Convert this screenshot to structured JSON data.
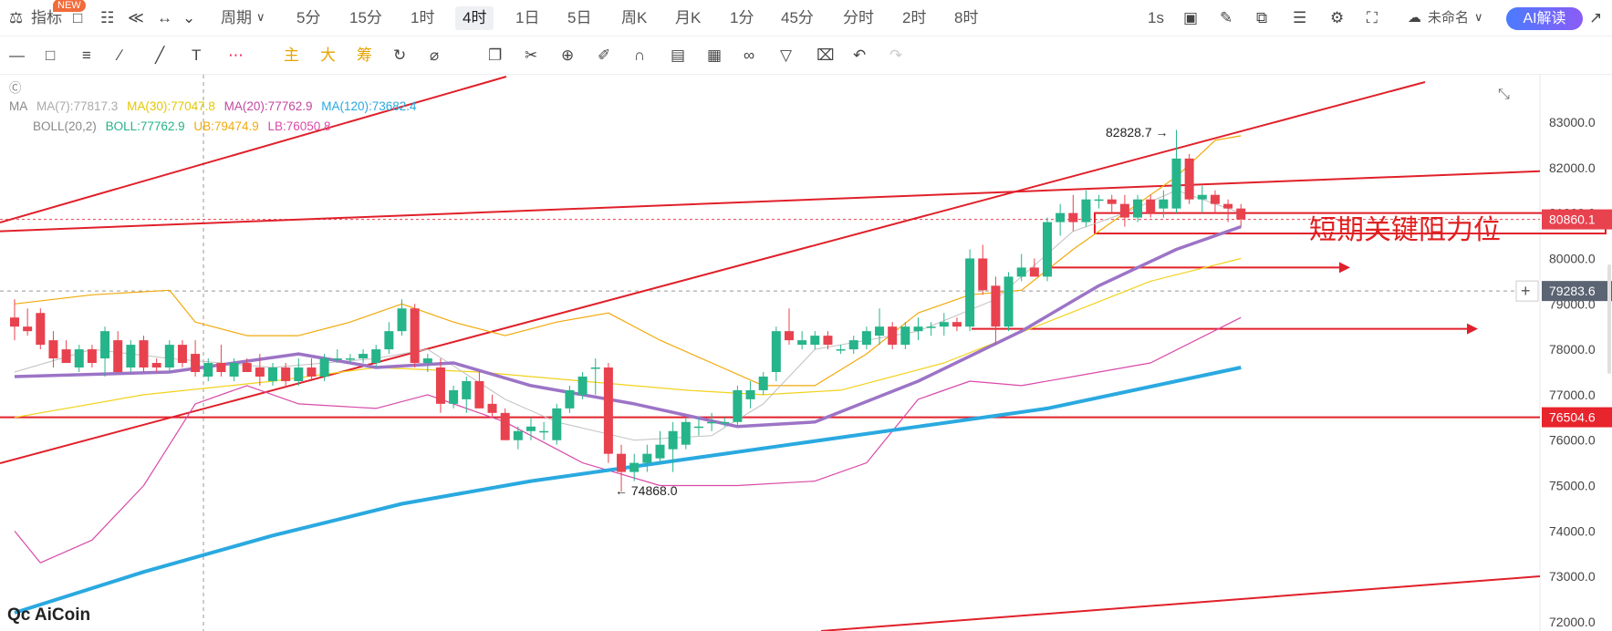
{
  "toolbar": {
    "indicators_label": "指标",
    "new_badge": "NEW",
    "period_label": "周期",
    "timeframes": [
      "5分",
      "15分",
      "1时",
      "4时",
      "1日",
      "5日",
      "周K",
      "月K",
      "1分",
      "45分",
      "分时",
      "2时",
      "8时"
    ],
    "active_timeframe": "4时",
    "refresh_label": "1s",
    "layout_name": "未命名",
    "ai_button": "AI解读"
  },
  "drawing_toolbar": {
    "text_tools": [
      "主",
      "大",
      "筹"
    ]
  },
  "legend": {
    "ma_label": "MA",
    "ma7": "MA(7):77817.3",
    "ma30": "MA(30):77047.8",
    "ma20": "MA(20):77762.9",
    "ma120": "MA(120):73682.4",
    "boll_label": "BOLL(20,2)",
    "boll": "BOLL:77762.9",
    "ub": "UB:79474.9",
    "lb": "LB:76050.8"
  },
  "colors": {
    "up": "#26b48a",
    "down": "#e8424f",
    "ma7": "#c0c0c0",
    "ma30": "#f2d21c",
    "ma20": "#9c74c6",
    "ma120": "#2aa9e0",
    "ub": "#f2a90c",
    "lb": "#d94aa8",
    "trendline": "#e0202a"
  },
  "chart_data": {
    "type": "candlestick",
    "y_axis_ticks": [
      "83000.0",
      "82000.0",
      "81000.0",
      "80000.0",
      "79000.0",
      "78000.0",
      "77000.0",
      "76000.0",
      "75000.0",
      "74000.0",
      "73000.0",
      "72000.0"
    ],
    "ylim": [
      71750,
      83750
    ],
    "price_labels": {
      "current": "80860.1",
      "crosshair": "79283.6",
      "support": "76504.6"
    },
    "annotations": {
      "high": "82828.7",
      "low": "74868.0",
      "key_resistance": "短期关键阻力位"
    },
    "candles": [
      [
        78700,
        79100,
        78200,
        78500
      ],
      [
        78500,
        78900,
        78300,
        78400
      ],
      [
        78800,
        78900,
        78000,
        78100
      ],
      [
        78200,
        78400,
        77600,
        77800
      ],
      [
        78000,
        78200,
        77700,
        77700
      ],
      [
        77600,
        78100,
        77500,
        78000
      ],
      [
        78000,
        78100,
        77600,
        77700
      ],
      [
        77800,
        78500,
        77400,
        78400
      ],
      [
        78200,
        78400,
        77500,
        77500
      ],
      [
        77600,
        78200,
        77500,
        78100
      ],
      [
        78200,
        78300,
        77500,
        77600
      ],
      [
        77700,
        77800,
        77500,
        77600
      ],
      [
        77600,
        78200,
        77500,
        78100
      ],
      [
        78100,
        78200,
        77600,
        77700
      ],
      [
        77900,
        78200,
        77400,
        77500
      ],
      [
        77400,
        77800,
        77300,
        77700
      ],
      [
        77700,
        78100,
        77400,
        77500
      ],
      [
        77400,
        77800,
        77300,
        77700
      ],
      [
        77700,
        77800,
        77500,
        77500
      ],
      [
        77600,
        77900,
        77200,
        77400
      ],
      [
        77300,
        77700,
        77200,
        77600
      ],
      [
        77600,
        77700,
        77200,
        77300
      ],
      [
        77300,
        77800,
        77200,
        77600
      ],
      [
        77600,
        77800,
        77300,
        77400
      ],
      [
        77400,
        77900,
        77300,
        77800
      ],
      [
        77800,
        78000,
        77700,
        77800
      ],
      [
        77800,
        77900,
        77700,
        77800
      ],
      [
        77800,
        78000,
        77700,
        77900
      ],
      [
        77700,
        78100,
        77600,
        78000
      ],
      [
        78000,
        78600,
        77900,
        78400
      ],
      [
        78400,
        79100,
        78300,
        78900
      ],
      [
        78900,
        79000,
        77600,
        77700
      ],
      [
        77700,
        77900,
        77500,
        77800
      ],
      [
        77600,
        77800,
        76600,
        76800
      ],
      [
        76800,
        77200,
        76700,
        77100
      ],
      [
        76900,
        77400,
        76600,
        77300
      ],
      [
        77300,
        77500,
        76700,
        76700
      ],
      [
        76800,
        77000,
        76500,
        76600
      ],
      [
        76600,
        76700,
        76000,
        76000
      ],
      [
        76000,
        76300,
        75800,
        76200
      ],
      [
        76200,
        76500,
        76000,
        76300
      ],
      [
        76200,
        76400,
        76000,
        76200
      ],
      [
        76000,
        76800,
        75900,
        76700
      ],
      [
        76700,
        77200,
        76600,
        77100
      ],
      [
        77000,
        77500,
        76900,
        77400
      ],
      [
        77600,
        77800,
        77000,
        77600
      ],
      [
        77600,
        77700,
        75500,
        75700
      ],
      [
        75700,
        75900,
        74868,
        75300
      ],
      [
        75300,
        75700,
        75100,
        75500
      ],
      [
        75500,
        75900,
        75300,
        75700
      ],
      [
        75600,
        76200,
        75500,
        75900
      ],
      [
        75800,
        76400,
        75300,
        76200
      ],
      [
        75900,
        76500,
        75800,
        76400
      ],
      [
        76300,
        76500,
        76100,
        76300
      ],
      [
        76400,
        76600,
        76200,
        76400
      ],
      [
        76400,
        76500,
        76300,
        76400
      ],
      [
        76400,
        77200,
        76300,
        77100
      ],
      [
        76900,
        77300,
        76700,
        77100
      ],
      [
        77100,
        77500,
        77000,
        77400
      ],
      [
        77500,
        78500,
        77300,
        78400
      ],
      [
        78400,
        78900,
        78100,
        78200
      ],
      [
        78100,
        78400,
        78000,
        78200
      ],
      [
        78100,
        78400,
        78000,
        78300
      ],
      [
        78300,
        78400,
        78000,
        78100
      ],
      [
        78000,
        78100,
        77900,
        78000
      ],
      [
        78000,
        78300,
        77900,
        78200
      ],
      [
        78100,
        78500,
        78000,
        78400
      ],
      [
        78300,
        78900,
        78100,
        78500
      ],
      [
        78500,
        78600,
        78000,
        78100
      ],
      [
        78100,
        78600,
        78000,
        78500
      ],
      [
        78400,
        78700,
        78200,
        78500
      ],
      [
        78500,
        78600,
        78300,
        78500
      ],
      [
        78500,
        78800,
        78300,
        78600
      ],
      [
        78600,
        78700,
        78400,
        78500
      ],
      [
        78500,
        80200,
        78400,
        80000
      ],
      [
        80000,
        80300,
        79200,
        79300
      ],
      [
        79400,
        79600,
        78100,
        78500
      ],
      [
        78500,
        79700,
        78400,
        79600
      ],
      [
        79600,
        80100,
        79500,
        79800
      ],
      [
        79800,
        80000,
        79600,
        79600
      ],
      [
        79600,
        80900,
        79500,
        80800
      ],
      [
        80800,
        81200,
        80500,
        81000
      ],
      [
        81000,
        81400,
        80600,
        80800
      ],
      [
        80800,
        81500,
        80700,
        81300
      ],
      [
        81300,
        81400,
        81100,
        81300
      ],
      [
        81300,
        81400,
        81000,
        81200
      ],
      [
        81200,
        81400,
        80700,
        80900
      ],
      [
        80900,
        81400,
        80800,
        81300
      ],
      [
        81300,
        81400,
        80900,
        81000
      ],
      [
        81100,
        81500,
        80900,
        81300
      ],
      [
        81100,
        82828.7,
        81000,
        82200
      ],
      [
        82200,
        82300,
        81200,
        81300
      ],
      [
        81300,
        81600,
        81000,
        81400
      ],
      [
        81400,
        81500,
        81000,
        81200
      ],
      [
        81200,
        81300,
        80800,
        81100
      ],
      [
        81100,
        81200,
        80700,
        80860.1
      ]
    ],
    "lines": {
      "ma20": [
        [
          0,
          77400
        ],
        [
          12,
          77500
        ],
        [
          22,
          77900
        ],
        [
          28,
          77600
        ],
        [
          34,
          77700
        ],
        [
          40,
          77200
        ],
        [
          48,
          76800
        ],
        [
          56,
          76300
        ],
        [
          62,
          76400
        ],
        [
          70,
          77300
        ],
        [
          78,
          78400
        ],
        [
          84,
          79400
        ],
        [
          90,
          80200
        ],
        [
          95,
          80700
        ]
      ],
      "ma30": [
        [
          0,
          76500
        ],
        [
          10,
          77000
        ],
        [
          20,
          77300
        ],
        [
          28,
          77600
        ],
        [
          36,
          77500
        ],
        [
          44,
          77300
        ],
        [
          52,
          77100
        ],
        [
          58,
          77000
        ],
        [
          64,
          77100
        ],
        [
          72,
          77700
        ],
        [
          80,
          78600
        ],
        [
          88,
          79500
        ],
        [
          95,
          80000
        ]
      ],
      "ma7": [
        [
          0,
          77500
        ],
        [
          6,
          78000
        ],
        [
          12,
          77800
        ],
        [
          20,
          77600
        ],
        [
          28,
          77800
        ],
        [
          32,
          78000
        ],
        [
          38,
          76900
        ],
        [
          42,
          76400
        ],
        [
          48,
          76000
        ],
        [
          54,
          76100
        ],
        [
          58,
          76800
        ],
        [
          62,
          78000
        ],
        [
          70,
          78400
        ],
        [
          76,
          79100
        ],
        [
          82,
          80600
        ],
        [
          86,
          81000
        ],
        [
          90,
          81500
        ],
        [
          95,
          81000
        ]
      ],
      "ma120": [
        [
          0,
          72200
        ],
        [
          10,
          73100
        ],
        [
          20,
          73900
        ],
        [
          30,
          74600
        ],
        [
          40,
          75100
        ],
        [
          50,
          75500
        ],
        [
          60,
          75900
        ],
        [
          70,
          76300
        ],
        [
          80,
          76700
        ],
        [
          90,
          77300
        ],
        [
          95,
          77600
        ]
      ],
      "ub": [
        [
          0,
          79000
        ],
        [
          6,
          79200
        ],
        [
          12,
          79300
        ],
        [
          14,
          78600
        ],
        [
          18,
          78300
        ],
        [
          22,
          78300
        ],
        [
          26,
          78600
        ],
        [
          30,
          79000
        ],
        [
          34,
          78600
        ],
        [
          38,
          78300
        ],
        [
          42,
          78600
        ],
        [
          46,
          78800
        ],
        [
          50,
          78200
        ],
        [
          54,
          77700
        ],
        [
          58,
          77200
        ],
        [
          62,
          77200
        ],
        [
          66,
          77900
        ],
        [
          70,
          78800
        ],
        [
          74,
          79200
        ],
        [
          78,
          79300
        ],
        [
          82,
          80200
        ],
        [
          86,
          81000
        ],
        [
          90,
          81800
        ],
        [
          93,
          82600
        ],
        [
          95,
          82700
        ]
      ],
      "lb": [
        [
          0,
          74000
        ],
        [
          2,
          73300
        ],
        [
          6,
          73800
        ],
        [
          10,
          75000
        ],
        [
          14,
          76800
        ],
        [
          18,
          77200
        ],
        [
          22,
          76800
        ],
        [
          28,
          76700
        ],
        [
          32,
          77000
        ],
        [
          38,
          76400
        ],
        [
          44,
          75500
        ],
        [
          50,
          75000
        ],
        [
          56,
          75000
        ],
        [
          62,
          75100
        ],
        [
          66,
          75500
        ],
        [
          70,
          76900
        ],
        [
          74,
          77300
        ],
        [
          78,
          77200
        ],
        [
          82,
          77400
        ],
        [
          88,
          77700
        ],
        [
          95,
          78700
        ]
      ]
    },
    "levels": {
      "support": 76504.6,
      "current": 80860.1,
      "crosshair": 79283.6
    }
  }
}
